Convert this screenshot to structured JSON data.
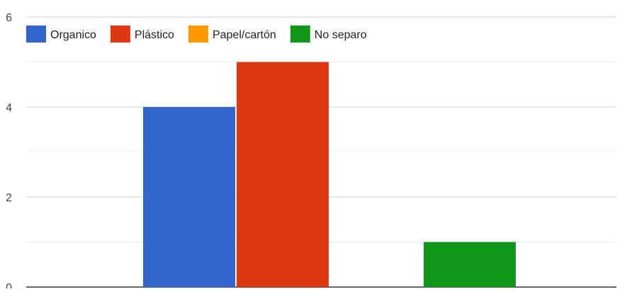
{
  "chart_data": {
    "type": "bar",
    "categories": [
      ""
    ],
    "series": [
      {
        "name": "Organico",
        "values": [
          4
        ],
        "color": "#3366cc"
      },
      {
        "name": "Plástico",
        "values": [
          5
        ],
        "color": "#dc3912"
      },
      {
        "name": "Papel/cartón",
        "values": [
          0
        ],
        "color": "#ff9900"
      },
      {
        "name": "No separo",
        "values": [
          1
        ],
        "color": "#109618"
      }
    ],
    "title": "",
    "xlabel": "",
    "ylabel": "",
    "ylim": [
      0,
      6
    ],
    "y_ticks": [
      0,
      2,
      4,
      6
    ],
    "minor_gridlines": [
      1,
      3,
      5
    ],
    "grid": true,
    "legend_position": "top-left"
  }
}
